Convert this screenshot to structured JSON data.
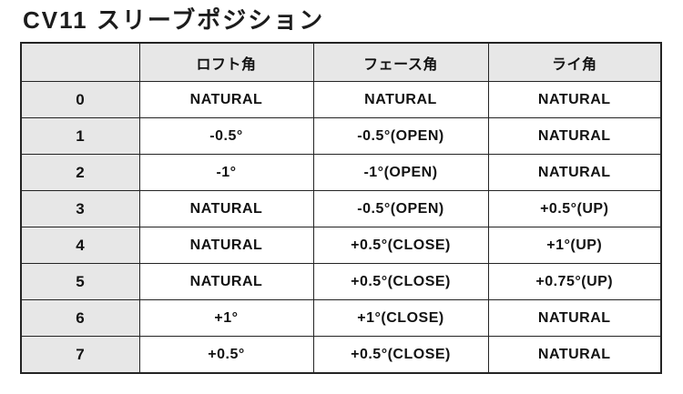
{
  "page": {
    "title": "CV11 スリーブポジション"
  },
  "colors": {
    "background": "#ffffff",
    "header_bg": "#e7e7e7",
    "border": "#242424",
    "text": "#121212"
  },
  "table": {
    "headers": [
      "",
      "ロフト角",
      "フェース角",
      "ライ角"
    ],
    "rows": [
      {
        "position": "0",
        "loft": "NATURAL",
        "face": "NATURAL",
        "lie": "NATURAL"
      },
      {
        "position": "1",
        "loft": "-0.5°",
        "face": "-0.5°(OPEN)",
        "lie": "NATURAL"
      },
      {
        "position": "2",
        "loft": "-1°",
        "face": "-1°(OPEN)",
        "lie": "NATURAL"
      },
      {
        "position": "3",
        "loft": "NATURAL",
        "face": "-0.5°(OPEN)",
        "lie": "+0.5°(UP)"
      },
      {
        "position": "4",
        "loft": "NATURAL",
        "face": "+0.5°(CLOSE)",
        "lie": "+1°(UP)"
      },
      {
        "position": "5",
        "loft": "NATURAL",
        "face": "+0.5°(CLOSE)",
        "lie": "+0.75°(UP)"
      },
      {
        "position": "6",
        "loft": "+1°",
        "face": "+1°(CLOSE)",
        "lie": "NATURAL"
      },
      {
        "position": "7",
        "loft": "+0.5°",
        "face": "+0.5°(CLOSE)",
        "lie": "NATURAL"
      }
    ]
  }
}
